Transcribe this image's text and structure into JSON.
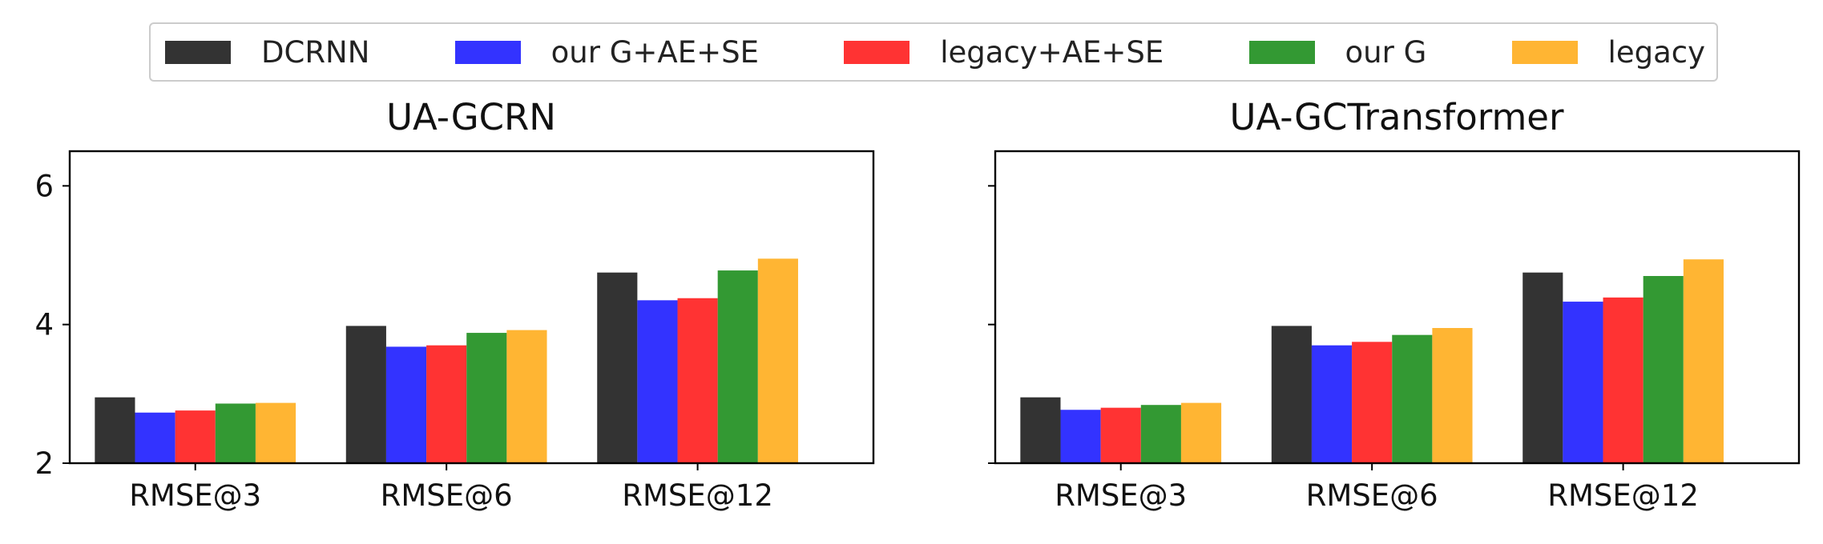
{
  "chart_data": [
    {
      "type": "bar",
      "title": "UA-GCRN",
      "categories": [
        "RMSE@3",
        "RMSE@6",
        "RMSE@12"
      ],
      "ylim": [
        2,
        6.5
      ],
      "yticks": [
        2,
        4,
        6
      ],
      "ytick_labels": [
        "2",
        "4",
        "6"
      ],
      "legend": "top-center",
      "grid": false,
      "series": [
        {
          "name": "DCRNN",
          "color": "#333333",
          "values": [
            2.95,
            3.98,
            4.75
          ]
        },
        {
          "name": "our G+AE+SE",
          "color": "#3333ff",
          "values": [
            2.73,
            3.68,
            4.35
          ]
        },
        {
          "name": "legacy+AE+SE",
          "color": "#ff3333",
          "values": [
            2.76,
            3.7,
            4.38
          ]
        },
        {
          "name": "our G",
          "color": "#339933",
          "values": [
            2.86,
            3.88,
            4.78
          ]
        },
        {
          "name": "legacy",
          "color": "#ffb533",
          "values": [
            2.87,
            3.92,
            4.95
          ]
        }
      ]
    },
    {
      "type": "bar",
      "title": "UA-GCTransformer",
      "categories": [
        "RMSE@3",
        "RMSE@6",
        "RMSE@12"
      ],
      "ylim": [
        2,
        6.5
      ],
      "yticks": [
        2,
        4,
        6
      ],
      "ytick_labels": [
        "",
        "",
        ""
      ],
      "legend": "top-center",
      "grid": false,
      "series": [
        {
          "name": "DCRNN",
          "color": "#333333",
          "values": [
            2.95,
            3.98,
            4.75
          ]
        },
        {
          "name": "our G+AE+SE",
          "color": "#3333ff",
          "values": [
            2.77,
            3.7,
            4.33
          ]
        },
        {
          "name": "legacy+AE+SE",
          "color": "#ff3333",
          "values": [
            2.8,
            3.75,
            4.39
          ]
        },
        {
          "name": "our G",
          "color": "#339933",
          "values": [
            2.84,
            3.85,
            4.7
          ]
        },
        {
          "name": "legacy",
          "color": "#ffb533",
          "values": [
            2.87,
            3.95,
            4.94
          ]
        }
      ]
    }
  ]
}
